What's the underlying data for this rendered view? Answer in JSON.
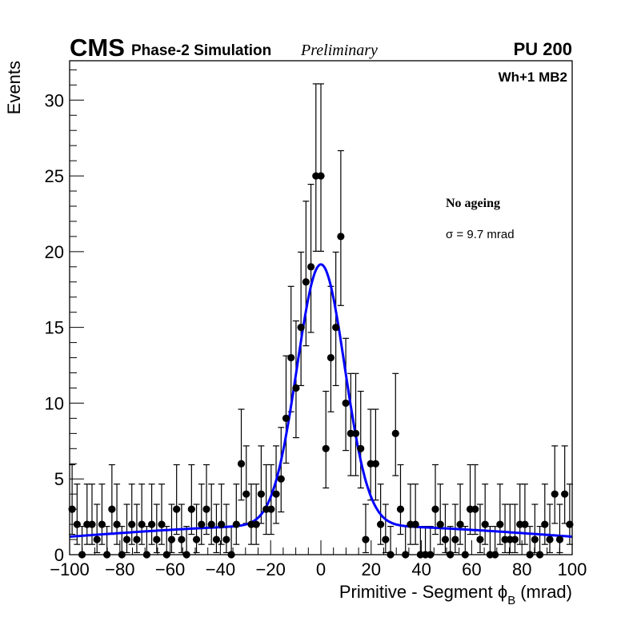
{
  "chart_data": {
    "type": "scatter",
    "subtype": "histogram-with-error-bars-and-fit",
    "title": {
      "experiment": "CMS",
      "label": "Phase-2 Simulation",
      "status": "Preliminary",
      "pileup": "PU 200"
    },
    "region_label": "Wh+1 MB2",
    "annotations": {
      "condition": "No ageing",
      "sigma": "σ = 9.7 mrad"
    },
    "xlabel": {
      "main": "Primitive - Segment ϕ",
      "sub": "B",
      "unit": "(mrad)"
    },
    "ylabel": "Events",
    "xlim": [
      -100,
      100
    ],
    "ylim": [
      0,
      32.6
    ],
    "xticks": [
      "−100",
      "−80",
      "−60",
      "−40",
      "−20",
      "0",
      "20",
      "40",
      "60",
      "80",
      "100"
    ],
    "xtick_values": [
      -100,
      -80,
      -60,
      -40,
      -20,
      0,
      20,
      40,
      60,
      80,
      100
    ],
    "yticks": [
      "0",
      "5",
      "10",
      "15",
      "20",
      "25",
      "30"
    ],
    "ytick_values": [
      0,
      5,
      10,
      15,
      20,
      25,
      30
    ],
    "n_bins": 101,
    "values": [
      3,
      2,
      0,
      2,
      2,
      1,
      2,
      0,
      3,
      2,
      0,
      1,
      2,
      1,
      2,
      0,
      2,
      1,
      2,
      0,
      1,
      3,
      1,
      0,
      3,
      1,
      2,
      3,
      2,
      1,
      2,
      1,
      0,
      2,
      6,
      4,
      2,
      2,
      4,
      3,
      3,
      4,
      5,
      9,
      13,
      11,
      15,
      18,
      19,
      25,
      25,
      7,
      13,
      15,
      21,
      10,
      8,
      8,
      7,
      1,
      6,
      6,
      2,
      1,
      0,
      8,
      3,
      0,
      2,
      2,
      0,
      0,
      0,
      3,
      2,
      1,
      0,
      1,
      2,
      0,
      3,
      3,
      1,
      2,
      0,
      0,
      2,
      1,
      1,
      1,
      2,
      2,
      0,
      1,
      0,
      2,
      1,
      4,
      1,
      4,
      2
    ],
    "fit": {
      "model": "double gaussian",
      "core_amplitude": 17.2,
      "core_mean": 0,
      "core_sigma": 9.5,
      "tail_amplitude": 1.96,
      "tail_mean": 0,
      "tail_sigma": 100,
      "color": "#0000ff"
    },
    "marker_color": "#000000"
  }
}
